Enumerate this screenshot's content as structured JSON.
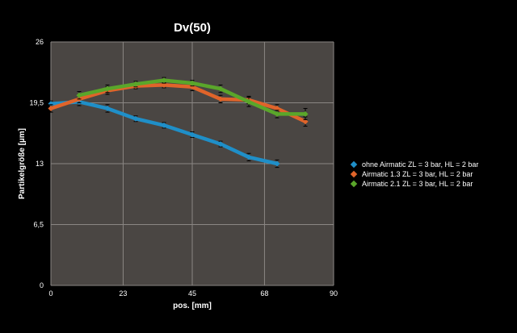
{
  "chart_data": {
    "type": "line",
    "title": "Dv(50)",
    "xlabel": "pos. [mm]",
    "ylabel": "Partikelgröße [µm]",
    "xlim": [
      0,
      90
    ],
    "ylim": [
      0,
      26
    ],
    "x_ticks": [
      0,
      23,
      45,
      68,
      90
    ],
    "x_tick_labels": [
      "0",
      "23",
      "45",
      "68",
      "90"
    ],
    "y_ticks": [
      0,
      6.5,
      13,
      19.5,
      26
    ],
    "y_tick_labels": [
      "0",
      "6,5",
      "13",
      "19,5",
      "26"
    ],
    "grid": true,
    "legend_position": "right",
    "plot_background": "#4a4643",
    "series": [
      {
        "name": "ohne Airmatic ZL = 3 bar, HL = 2 bar",
        "color": "#1f8fc8",
        "x": [
          0,
          9,
          18,
          27,
          36,
          45,
          54,
          63,
          72
        ],
        "y": [
          19.4,
          19.6,
          18.9,
          17.8,
          17.1,
          16.1,
          15.1,
          13.7,
          13.0
        ],
        "err": [
          0.3,
          0.4,
          0.4,
          0.3,
          0.3,
          0.3,
          0.3,
          0.4,
          0.4
        ]
      },
      {
        "name": "Airmatic 1.3 ZL = 3 bar, HL = 2 bar",
        "color": "#e0642a",
        "x": [
          0,
          9,
          18,
          27,
          36,
          45,
          54,
          63,
          72,
          81
        ],
        "y": [
          18.9,
          19.9,
          20.8,
          21.3,
          21.4,
          21.2,
          19.9,
          19.8,
          18.9,
          17.5
        ],
        "err": [
          0.4,
          0.4,
          0.4,
          0.3,
          0.3,
          0.4,
          0.4,
          0.4,
          0.4,
          0.5
        ]
      },
      {
        "name": "Airmatic 2.1 ZL = 3 bar, HL = 2 bar",
        "color": "#5aa62a",
        "x": [
          9,
          18,
          27,
          36,
          45,
          54,
          63,
          72,
          81
        ],
        "y": [
          20.3,
          21.0,
          21.5,
          21.9,
          21.6,
          21.0,
          19.6,
          18.3,
          18.3
        ],
        "err": [
          0.4,
          0.4,
          0.3,
          0.3,
          0.3,
          0.4,
          0.5,
          0.4,
          0.6
        ]
      }
    ]
  }
}
